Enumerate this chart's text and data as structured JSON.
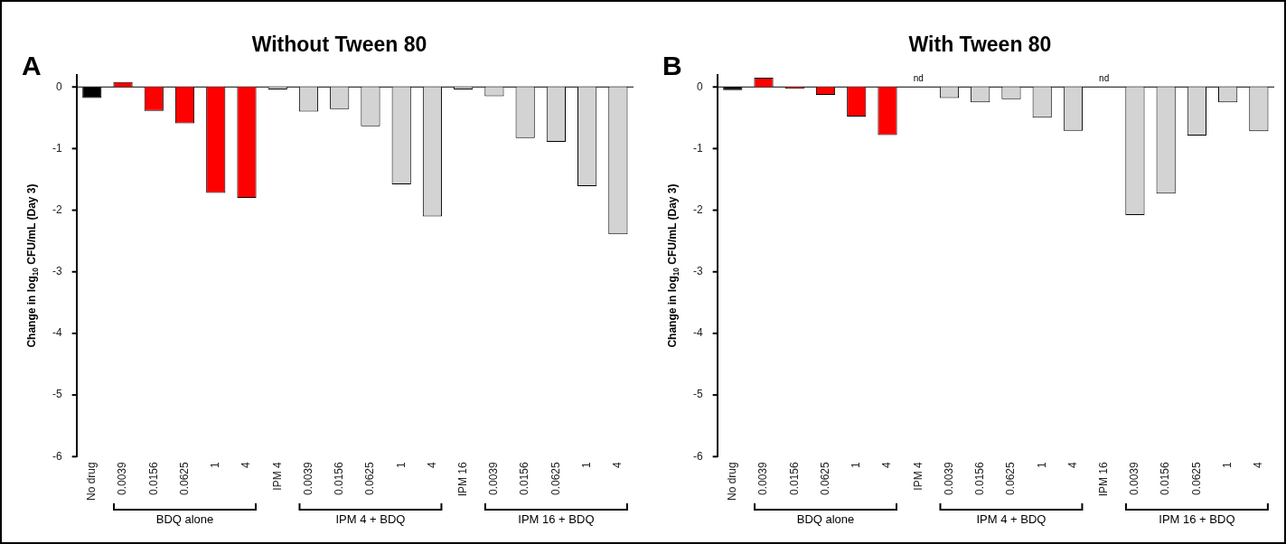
{
  "chart_data": [
    {
      "type": "bar",
      "title": "Without Tween 80",
      "ylabel": "Change in log$_{10}$ CFU/mL (Day 3)",
      "categories": [
        "No drug",
        "0.0039",
        "0.0156",
        "0.0625",
        "1",
        "4",
        "IPM 4",
        "0.0039",
        "0.0156",
        "0.0625",
        "1",
        "4",
        "IPM 16",
        "0.0039",
        "0.0156",
        "0.0625",
        "1",
        "4"
      ],
      "values": [
        -0.18,
        0.08,
        -0.39,
        -0.59,
        -1.72,
        -1.8,
        -0.04,
        -0.4,
        -0.36,
        -0.64,
        -1.58,
        -2.1,
        -0.04,
        -0.15,
        -0.83,
        -0.89,
        -1.61,
        -2.39
      ],
      "colors": [
        "#000000",
        "#ff0000",
        "#ff0000",
        "#ff0000",
        "#ff0000",
        "#ff0000",
        "#d3d3d3",
        "#d3d3d3",
        "#d3d3d3",
        "#d3d3d3",
        "#d3d3d3",
        "#d3d3d3",
        "#d3d3d3",
        "#d3d3d3",
        "#d3d3d3",
        "#d3d3d3",
        "#d3d3d3",
        "#d3d3d3"
      ],
      "ylim": [
        -6,
        0.2
      ],
      "yticks": [
        -6,
        -5,
        -4,
        -3,
        -2,
        -1,
        0
      ],
      "grid": false,
      "legend": false,
      "ref_lines": [
        {
          "axis": "y",
          "value": 0,
          "color": "#000000"
        }
      ],
      "annotations": [
        "A",
        "BDQ alone",
        "IPM 4 + BDQ",
        "IPM 16 + BDQ"
      ]
    },
    {
      "type": "bar",
      "title": "With Tween 80",
      "ylabel": "Change in log$_{10}$ CFU/mL (Day 3)",
      "categories": [
        "No drug",
        "0.0039",
        "0.0156",
        "0.0625",
        "1",
        "4",
        "IPM 4",
        "0.0039",
        "0.0156",
        "0.0625",
        "1",
        "4",
        "IPM 16",
        "0.0039",
        "0.0156",
        "0.0625",
        "1",
        "4"
      ],
      "values": [
        -0.05,
        0.15,
        -0.03,
        -0.13,
        -0.48,
        -0.78,
        null,
        -0.18,
        -0.25,
        -0.2,
        -0.5,
        -0.71,
        null,
        -2.08,
        -1.73,
        -0.79,
        -0.25,
        -0.72
      ],
      "colors": [
        "#000000",
        "#ff0000",
        "#ff0000",
        "#ff0000",
        "#ff0000",
        "#ff0000",
        "#d3d3d3",
        "#d3d3d3",
        "#d3d3d3",
        "#d3d3d3",
        "#d3d3d3",
        "#d3d3d3",
        "#d3d3d3",
        "#d3d3d3",
        "#d3d3d3",
        "#d3d3d3",
        "#d3d3d3",
        "#d3d3d3"
      ],
      "ylim": [
        -6,
        0.2
      ],
      "yticks": [
        -6,
        -5,
        -4,
        -3,
        -2,
        -1,
        0
      ],
      "grid": false,
      "legend": false,
      "ref_lines": [
        {
          "axis": "y",
          "value": 0,
          "color": "#000000"
        }
      ],
      "value_labels": [
        null,
        null,
        null,
        null,
        null,
        null,
        "nd",
        null,
        null,
        null,
        null,
        null,
        "nd",
        null,
        null,
        null,
        null,
        null
      ],
      "annotations": [
        "B",
        "BDQ alone",
        "IPM 4 + BDQ",
        "IPM 16 + BDQ"
      ]
    }
  ]
}
